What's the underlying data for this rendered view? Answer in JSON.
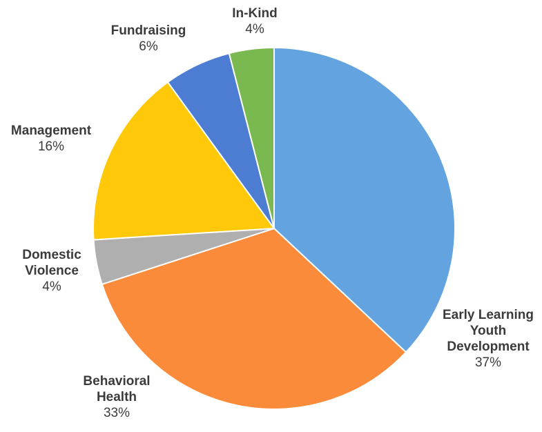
{
  "chart_data": {
    "type": "pie",
    "title": "",
    "slices": [
      {
        "label": "Early Learning Youth Development",
        "label_lines": [
          "Early Learning",
          "Youth",
          "Development"
        ],
        "value": 37,
        "value_label": "37%",
        "color": "#62A3E0"
      },
      {
        "label": "Behavioral Health",
        "label_lines": [
          "Behavioral",
          "Health"
        ],
        "value": 33,
        "value_label": "33%",
        "color": "#F98B3B"
      },
      {
        "label": "Domestic Violence",
        "label_lines": [
          "Domestic",
          "Violence"
        ],
        "value": 4,
        "value_label": "4%",
        "color": "#AFAFAF"
      },
      {
        "label": "Management",
        "label_lines": [
          "Management"
        ],
        "value": 16,
        "value_label": "16%",
        "color": "#FFC90A"
      },
      {
        "label": "Fundraising",
        "label_lines": [
          "Fundraising"
        ],
        "value": 6,
        "value_label": "6%",
        "color": "#4D7DD3"
      },
      {
        "label": "In-Kind",
        "label_lines": [
          "In-Kind"
        ],
        "value": 4,
        "value_label": "4%",
        "color": "#7AB850"
      }
    ],
    "start_angle_deg": 0,
    "direction": "clockwise",
    "legend": "none",
    "data_labels": "outside"
  }
}
